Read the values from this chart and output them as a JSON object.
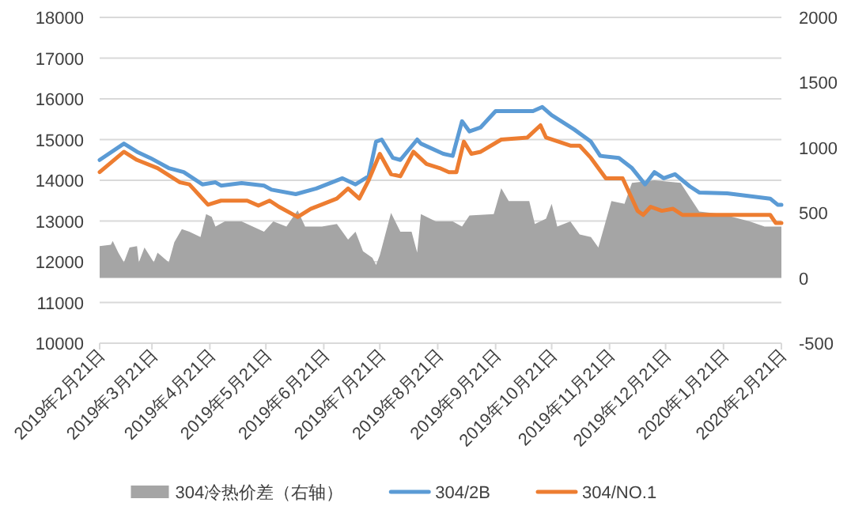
{
  "chart_data": {
    "type": "line",
    "grid": "y",
    "legend": "bottom",
    "xlim": [
      "2019-02-21",
      "2020-02-21"
    ],
    "xticks": [
      {
        "value": "2019-02-21",
        "label": "2019年2月21日"
      },
      {
        "value": "2019-03-21",
        "label": "2019年3月21日"
      },
      {
        "value": "2019-04-21",
        "label": "2019年4月21日"
      },
      {
        "value": "2019-05-21",
        "label": "2019年5月21日"
      },
      {
        "value": "2019-06-21",
        "label": "2019年6月21日"
      },
      {
        "value": "2019-07-21",
        "label": "2019年7月21日"
      },
      {
        "value": "2019-08-21",
        "label": "2019年8月21日"
      },
      {
        "value": "2019-09-21",
        "label": "2019年9月21日"
      },
      {
        "value": "2019-10-21",
        "label": "2019年10月21日"
      },
      {
        "value": "2019-11-21",
        "label": "2019年11月21日"
      },
      {
        "value": "2019-12-21",
        "label": "2019年12月21日"
      },
      {
        "value": "2020-01-21",
        "label": "2020年1月21日"
      },
      {
        "value": "2020-02-21",
        "label": "2020年2月21日"
      }
    ],
    "ylim": [
      10000,
      18000
    ],
    "yticks": [
      10000,
      11000,
      12000,
      13000,
      14000,
      15000,
      16000,
      17000,
      18000
    ],
    "y2lim": [
      -500,
      2000
    ],
    "y2ticks": [
      -500,
      0,
      500,
      1000,
      1500,
      2000
    ],
    "series": [
      {
        "name": "304冷热价差（右轴）",
        "type": "area",
        "axis": "y2",
        "color": "#a5a5a5",
        "x": [
          "2019-02-21",
          "2019-02-27",
          "2019-02-28",
          "2019-03-03",
          "2019-03-06",
          "2019-03-09",
          "2019-03-13",
          "2019-03-14",
          "2019-03-17",
          "2019-03-22",
          "2019-03-24",
          "2019-03-30",
          "2019-04-02",
          "2019-04-06",
          "2019-04-10",
          "2019-04-16",
          "2019-04-19",
          "2019-04-22",
          "2019-04-24",
          "2019-04-29",
          "2019-05-08",
          "2019-05-14",
          "2019-05-20",
          "2019-05-25",
          "2019-06-01",
          "2019-06-07",
          "2019-06-11",
          "2019-06-20",
          "2019-06-28",
          "2019-07-04",
          "2019-07-08",
          "2019-07-12",
          "2019-07-17",
          "2019-07-19",
          "2019-07-21",
          "2019-07-27",
          "2019-08-01",
          "2019-08-07",
          "2019-08-10",
          "2019-08-12",
          "2019-08-20",
          "2019-08-29",
          "2019-09-03",
          "2019-09-07",
          "2019-09-20",
          "2019-09-24",
          "2019-09-28",
          "2019-10-09",
          "2019-10-12",
          "2019-10-18",
          "2019-10-21",
          "2019-10-24",
          "2019-10-31",
          "2019-11-05",
          "2019-11-11",
          "2019-11-15",
          "2019-11-22",
          "2019-11-29",
          "2019-12-03",
          "2019-12-15",
          "2019-12-29",
          "2020-01-08",
          "2020-01-20",
          "2020-02-04",
          "2020-02-12",
          "2020-02-21"
        ],
        "values": [
          245,
          255,
          285,
          195,
          120,
          235,
          245,
          120,
          235,
          120,
          195,
          120,
          275,
          375,
          355,
          315,
          490,
          470,
          395,
          435,
          435,
          395,
          355,
          435,
          395,
          520,
          395,
          395,
          415,
          295,
          355,
          205,
          155,
          100,
          175,
          500,
          355,
          355,
          195,
          490,
          435,
          435,
          395,
          480,
          490,
          690,
          590,
          590,
          415,
          455,
          570,
          395,
          435,
          335,
          315,
          235,
          590,
          570,
          730,
          750,
          730,
          510,
          490,
          435,
          395,
          395
        ]
      },
      {
        "name": "304/2B",
        "color": "#5b9bd5",
        "x": [
          "2019-02-21",
          "2019-03-06",
          "2019-03-13",
          "2019-03-20",
          "2019-03-30",
          "2019-04-07",
          "2019-04-17",
          "2019-04-24",
          "2019-04-27",
          "2019-05-08",
          "2019-05-20",
          "2019-05-24",
          "2019-06-06",
          "2019-06-17",
          "2019-07-01",
          "2019-07-08",
          "2019-07-15",
          "2019-07-19",
          "2019-07-22",
          "2019-07-28",
          "2019-08-01",
          "2019-08-10",
          "2019-08-12",
          "2019-08-24",
          "2019-08-29",
          "2019-09-03",
          "2019-09-07",
          "2019-09-13",
          "2019-09-21",
          "2019-10-11",
          "2019-10-16",
          "2019-10-21",
          "2019-11-02",
          "2019-11-11",
          "2019-11-16",
          "2019-11-26",
          "2019-12-03",
          "2019-12-10",
          "2019-12-15",
          "2019-12-20",
          "2019-12-26",
          "2020-01-03",
          "2020-01-08",
          "2020-01-23",
          "2020-02-15",
          "2020-02-19",
          "2020-02-21"
        ],
        "values": [
          14500,
          14900,
          14700,
          14550,
          14300,
          14200,
          13900,
          13950,
          13870,
          13930,
          13870,
          13770,
          13660,
          13800,
          14050,
          13900,
          14100,
          14950,
          15000,
          14550,
          14500,
          15000,
          14900,
          14650,
          14600,
          15450,
          15200,
          15300,
          15700,
          15700,
          15800,
          15600,
          15250,
          14950,
          14600,
          14550,
          14300,
          13900,
          14200,
          14050,
          14150,
          13850,
          13700,
          13680,
          13550,
          13400,
          13400
        ]
      },
      {
        "name": "304/NO.1",
        "color": "#ed7d31",
        "x": [
          "2019-02-21",
          "2019-03-06",
          "2019-03-13",
          "2019-03-24",
          "2019-04-05",
          "2019-04-10",
          "2019-04-20",
          "2019-04-27",
          "2019-05-11",
          "2019-05-17",
          "2019-05-23",
          "2019-05-28",
          "2019-06-07",
          "2019-06-14",
          "2019-06-28",
          "2019-07-04",
          "2019-07-10",
          "2019-07-15",
          "2019-07-21",
          "2019-07-27",
          "2019-08-01",
          "2019-08-08",
          "2019-08-15",
          "2019-08-22",
          "2019-08-27",
          "2019-08-31",
          "2019-09-04",
          "2019-09-08",
          "2019-09-13",
          "2019-09-24",
          "2019-10-08",
          "2019-10-15",
          "2019-10-18",
          "2019-10-31",
          "2019-11-05",
          "2019-11-11",
          "2019-11-19",
          "2019-11-28",
          "2019-12-06",
          "2019-12-09",
          "2019-12-13",
          "2019-12-19",
          "2019-12-25",
          "2019-12-30",
          "2020-02-15",
          "2020-02-18",
          "2020-02-21"
        ],
        "values": [
          14200,
          14700,
          14500,
          14300,
          13950,
          13900,
          13400,
          13500,
          13500,
          13380,
          13500,
          13350,
          13100,
          13300,
          13550,
          13800,
          13550,
          14000,
          14650,
          14150,
          14100,
          14700,
          14400,
          14300,
          14200,
          14200,
          14950,
          14650,
          14700,
          15000,
          15050,
          15350,
          15050,
          14850,
          14850,
          14550,
          14050,
          14050,
          13250,
          13150,
          13350,
          13250,
          13300,
          13150,
          13150,
          12950,
          12950
        ]
      }
    ]
  }
}
